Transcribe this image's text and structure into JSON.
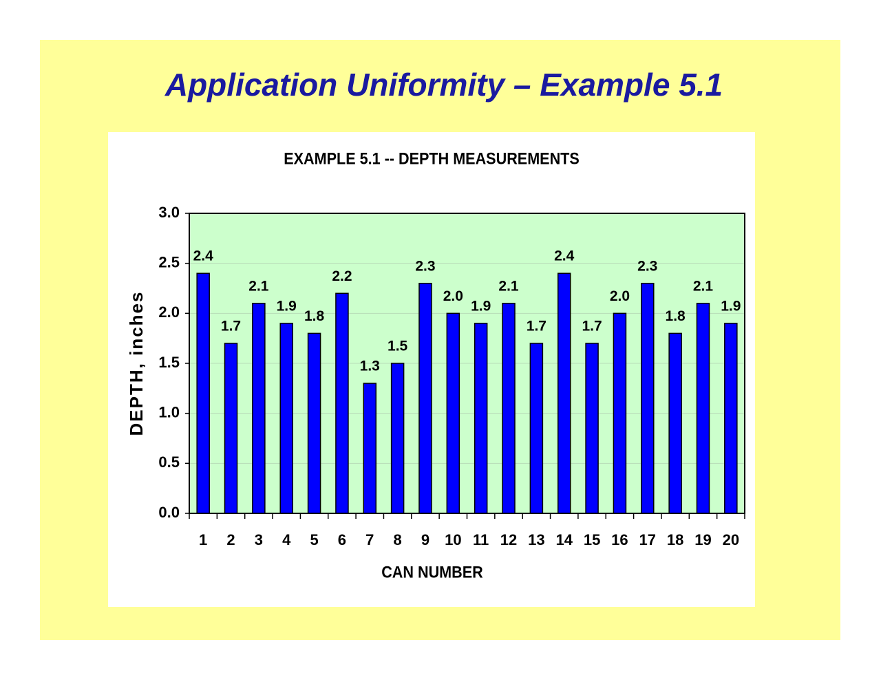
{
  "slide_title": "Application Uniformity – Example 5.1",
  "chart_data": {
    "type": "bar",
    "title": "EXAMPLE 5.1 --  DEPTH MEASUREMENTS",
    "x_label": "CAN NUMBER",
    "y_label": "DEPTH, inches",
    "categories": [
      "1",
      "2",
      "3",
      "4",
      "5",
      "6",
      "7",
      "8",
      "9",
      "10",
      "11",
      "12",
      "13",
      "14",
      "15",
      "16",
      "17",
      "18",
      "19",
      "20"
    ],
    "values": [
      2.4,
      1.7,
      2.1,
      1.9,
      1.8,
      2.2,
      1.3,
      1.5,
      2.3,
      2.0,
      1.9,
      2.1,
      1.7,
      2.4,
      1.7,
      2.0,
      2.3,
      1.8,
      2.1,
      1.9
    ],
    "value_labels": [
      "2.4",
      "1.7",
      "2.1",
      "1.9",
      "1.8",
      "2.2",
      "1.3",
      "1.5",
      "2.3",
      "2.0",
      "1.9",
      "2.1",
      "1.7",
      "2.4",
      "1.7",
      "2.0",
      "2.3",
      "1.8",
      "2.1",
      "1.9"
    ],
    "color": "#0000ff",
    "ylim": [
      0,
      3
    ],
    "yticks": [
      {
        "value": 0,
        "label": "0.0"
      },
      0.5,
      {
        "value": 1,
        "label": "1.0"
      },
      1.5,
      {
        "value": 2,
        "label": "2.0"
      },
      2.5,
      {
        "value": 3,
        "label": "3.0"
      }
    ],
    "grid": true
  }
}
